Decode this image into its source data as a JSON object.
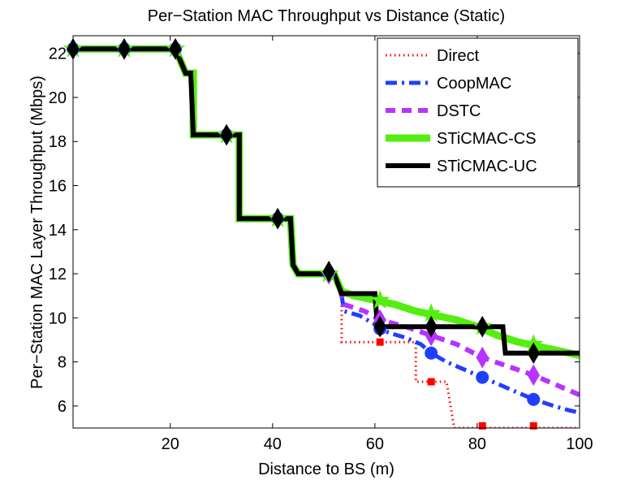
{
  "chart_data": {
    "type": "line",
    "title": "Per−Station MAC Throughput vs Distance (Static)",
    "xlabel": "Distance to BS (m)",
    "ylabel": "Per−Station MAC Layer Throughput (Mbps)",
    "xlim": [
      1,
      100
    ],
    "ylim": [
      5,
      22.8
    ],
    "xticks": [
      20,
      40,
      60,
      80,
      100
    ],
    "yticks": [
      6,
      8,
      10,
      12,
      14,
      16,
      18,
      20,
      22
    ],
    "grid": false,
    "legend_position": "top-right",
    "series": [
      {
        "name": "Direct",
        "color": "#ff0000",
        "style": "dotted",
        "marker": "square",
        "points": [
          [
            1,
            22.2
          ],
          [
            21,
            22.2
          ],
          [
            23,
            21.1
          ],
          [
            24.5,
            21.1
          ],
          [
            24.5,
            18.3
          ],
          [
            33.5,
            18.3
          ],
          [
            33.5,
            14.5
          ],
          [
            43.5,
            14.5
          ],
          [
            44,
            12.4
          ],
          [
            45,
            12.0
          ],
          [
            52,
            12.0
          ],
          [
            53.5,
            11.0
          ],
          [
            53.5,
            8.9
          ],
          [
            68,
            8.9
          ],
          [
            68,
            7.1
          ],
          [
            74,
            7.1
          ],
          [
            75.5,
            5.0
          ],
          [
            100,
            5.0
          ]
        ],
        "markers": [
          [
            1,
            22.2
          ],
          [
            11,
            22.2
          ],
          [
            21,
            22.2
          ],
          [
            31,
            18.3
          ],
          [
            41,
            14.5
          ],
          [
            51,
            12.0
          ],
          [
            61,
            8.9
          ],
          [
            71,
            7.1
          ],
          [
            81,
            5.1
          ],
          [
            91,
            5.1
          ]
        ]
      },
      {
        "name": "CoopMAC",
        "color": "#1f3fff",
        "style": "dashdot",
        "marker": "circle",
        "points": [
          [
            1,
            22.2
          ],
          [
            21,
            22.2
          ],
          [
            23,
            21.1
          ],
          [
            24.5,
            21.1
          ],
          [
            24.5,
            18.3
          ],
          [
            33.5,
            18.3
          ],
          [
            33.5,
            14.5
          ],
          [
            43.5,
            14.5
          ],
          [
            44,
            12.4
          ],
          [
            45,
            12.0
          ],
          [
            52,
            12.0
          ],
          [
            53.5,
            11.0
          ],
          [
            54,
            10.3
          ],
          [
            57,
            10.1
          ],
          [
            60,
            9.7
          ],
          [
            61,
            9.5
          ],
          [
            63,
            9.3
          ],
          [
            66,
            9.1
          ],
          [
            69,
            8.8
          ],
          [
            71,
            8.4
          ],
          [
            74,
            8.0
          ],
          [
            77,
            7.7
          ],
          [
            81,
            7.3
          ],
          [
            85,
            6.9
          ],
          [
            88,
            6.6
          ],
          [
            91,
            6.3
          ],
          [
            95,
            6.0
          ],
          [
            98,
            5.8
          ],
          [
            100,
            5.7
          ]
        ],
        "markers": [
          [
            1,
            22.2
          ],
          [
            11,
            22.2
          ],
          [
            21,
            22.2
          ],
          [
            31,
            18.3
          ],
          [
            41,
            14.5
          ],
          [
            51,
            12.0
          ],
          [
            61,
            9.5
          ],
          [
            71,
            8.4
          ],
          [
            81,
            7.3
          ],
          [
            91,
            6.3
          ]
        ]
      },
      {
        "name": "DSTC",
        "color": "#b833ff",
        "style": "dashed",
        "marker": "diamond",
        "points": [
          [
            1,
            22.2
          ],
          [
            21,
            22.2
          ],
          [
            23,
            21.1
          ],
          [
            24.5,
            21.1
          ],
          [
            24.5,
            18.3
          ],
          [
            33.5,
            18.3
          ],
          [
            33.5,
            14.5
          ],
          [
            43.5,
            14.5
          ],
          [
            44,
            12.4
          ],
          [
            45,
            12.0
          ],
          [
            52,
            12.0
          ],
          [
            53.5,
            11.0
          ],
          [
            54,
            10.6
          ],
          [
            58,
            10.3
          ],
          [
            61,
            9.9
          ],
          [
            66,
            9.6
          ],
          [
            71,
            9.2
          ],
          [
            76,
            8.8
          ],
          [
            81,
            8.2
          ],
          [
            86,
            7.8
          ],
          [
            91,
            7.4
          ],
          [
            96,
            6.9
          ],
          [
            100,
            6.5
          ]
        ],
        "markers": [
          [
            1,
            22.2
          ],
          [
            11,
            22.2
          ],
          [
            21,
            22.2
          ],
          [
            31,
            18.3
          ],
          [
            41,
            14.5
          ],
          [
            51,
            12.0
          ],
          [
            61,
            9.9
          ],
          [
            71,
            9.2
          ],
          [
            81,
            8.2
          ],
          [
            91,
            7.4
          ]
        ]
      },
      {
        "name": "STiCMAC-CS",
        "color": "#55ee11",
        "style": "solid",
        "marker": "star",
        "points": [
          [
            1,
            22.2
          ],
          [
            21,
            22.2
          ],
          [
            23,
            21.1
          ],
          [
            24.5,
            21.1
          ],
          [
            24.5,
            18.3
          ],
          [
            33.5,
            18.3
          ],
          [
            33.5,
            14.5
          ],
          [
            43.5,
            14.5
          ],
          [
            44,
            12.4
          ],
          [
            45,
            12.0
          ],
          [
            52,
            12.0
          ],
          [
            53.5,
            11.2
          ],
          [
            56,
            11.0
          ],
          [
            60,
            10.8
          ],
          [
            64,
            10.6
          ],
          [
            68,
            10.3
          ],
          [
            72,
            10.1
          ],
          [
            76,
            9.9
          ],
          [
            80,
            9.6
          ],
          [
            84,
            9.2
          ],
          [
            88,
            8.9
          ],
          [
            92,
            8.7
          ],
          [
            96,
            8.5
          ],
          [
            100,
            8.3
          ]
        ],
        "markers": [
          [
            1,
            22.2
          ],
          [
            11,
            22.2
          ],
          [
            21,
            22.2
          ],
          [
            31,
            18.3
          ],
          [
            41,
            14.5
          ],
          [
            51,
            12.0
          ],
          [
            61,
            10.8
          ],
          [
            71,
            10.2
          ],
          [
            81,
            9.6
          ],
          [
            91,
            8.8
          ]
        ]
      },
      {
        "name": "STiCMAC-UC",
        "color": "#000000",
        "style": "solid",
        "marker": "diamond",
        "points": [
          [
            1,
            22.2
          ],
          [
            21,
            22.2
          ],
          [
            23,
            21.1
          ],
          [
            24,
            21.1
          ],
          [
            24.5,
            18.3
          ],
          [
            33.5,
            18.3
          ],
          [
            33.5,
            14.5
          ],
          [
            43.5,
            14.5
          ],
          [
            44,
            12.4
          ],
          [
            45,
            12.0
          ],
          [
            52,
            12.0
          ],
          [
            53.5,
            11.1
          ],
          [
            60,
            11.1
          ],
          [
            60.5,
            9.6
          ],
          [
            85,
            9.6
          ],
          [
            85.5,
            8.4
          ],
          [
            100,
            8.4
          ]
        ],
        "markers": [
          [
            1,
            22.2
          ],
          [
            11,
            22.2
          ],
          [
            21,
            22.2
          ],
          [
            31,
            18.3
          ],
          [
            41,
            14.5
          ],
          [
            51,
            12.1
          ],
          [
            61,
            9.6
          ],
          [
            71,
            9.6
          ],
          [
            81,
            9.6
          ],
          [
            91,
            8.4
          ]
        ]
      }
    ]
  }
}
